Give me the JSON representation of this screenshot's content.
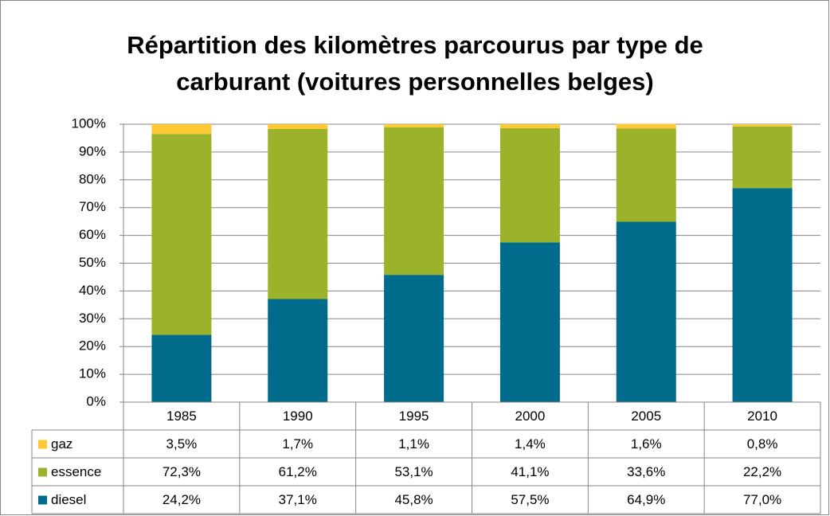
{
  "chart_data": {
    "type": "bar",
    "stacked": true,
    "title": "Répartition des kilomètres parcourus par type de carburant (voitures personnelles belges)",
    "categories": [
      "1985",
      "1990",
      "1995",
      "2000",
      "2005",
      "2010"
    ],
    "series": [
      {
        "name": "diesel",
        "color": "#006b8a",
        "values": [
          24.2,
          37.1,
          45.8,
          57.5,
          64.9,
          77.0
        ],
        "value_labels": [
          "24,2%",
          "37,1%",
          "45,8%",
          "57,5%",
          "64,9%",
          "77,0%"
        ]
      },
      {
        "name": "essence",
        "color": "#9bb22a",
        "values": [
          72.3,
          61.2,
          53.1,
          41.1,
          33.6,
          22.2
        ],
        "value_labels": [
          "72,3%",
          "61,2%",
          "53,1%",
          "41,1%",
          "33,6%",
          "22,2%"
        ]
      },
      {
        "name": "gaz",
        "color": "#ffc933",
        "values": [
          3.5,
          1.7,
          1.1,
          1.4,
          1.6,
          0.8
        ],
        "value_labels": [
          "3,5%",
          "1,7%",
          "1,1%",
          "1,4%",
          "1,6%",
          "0,8%"
        ]
      }
    ],
    "ylim": [
      0,
      100
    ],
    "yticks": [
      {
        "value": 0,
        "label": "0%"
      },
      {
        "value": 10,
        "label": "10%"
      },
      {
        "value": 20,
        "label": "20%"
      },
      {
        "value": 30,
        "label": "30%"
      },
      {
        "value": 40,
        "label": "40%"
      },
      {
        "value": 50,
        "label": "50%"
      },
      {
        "value": 60,
        "label": "60%"
      },
      {
        "value": 70,
        "label": "70%"
      },
      {
        "value": 80,
        "label": "80%"
      },
      {
        "value": 90,
        "label": "90%"
      },
      {
        "value": 100,
        "label": "100%"
      }
    ],
    "grid": true
  }
}
